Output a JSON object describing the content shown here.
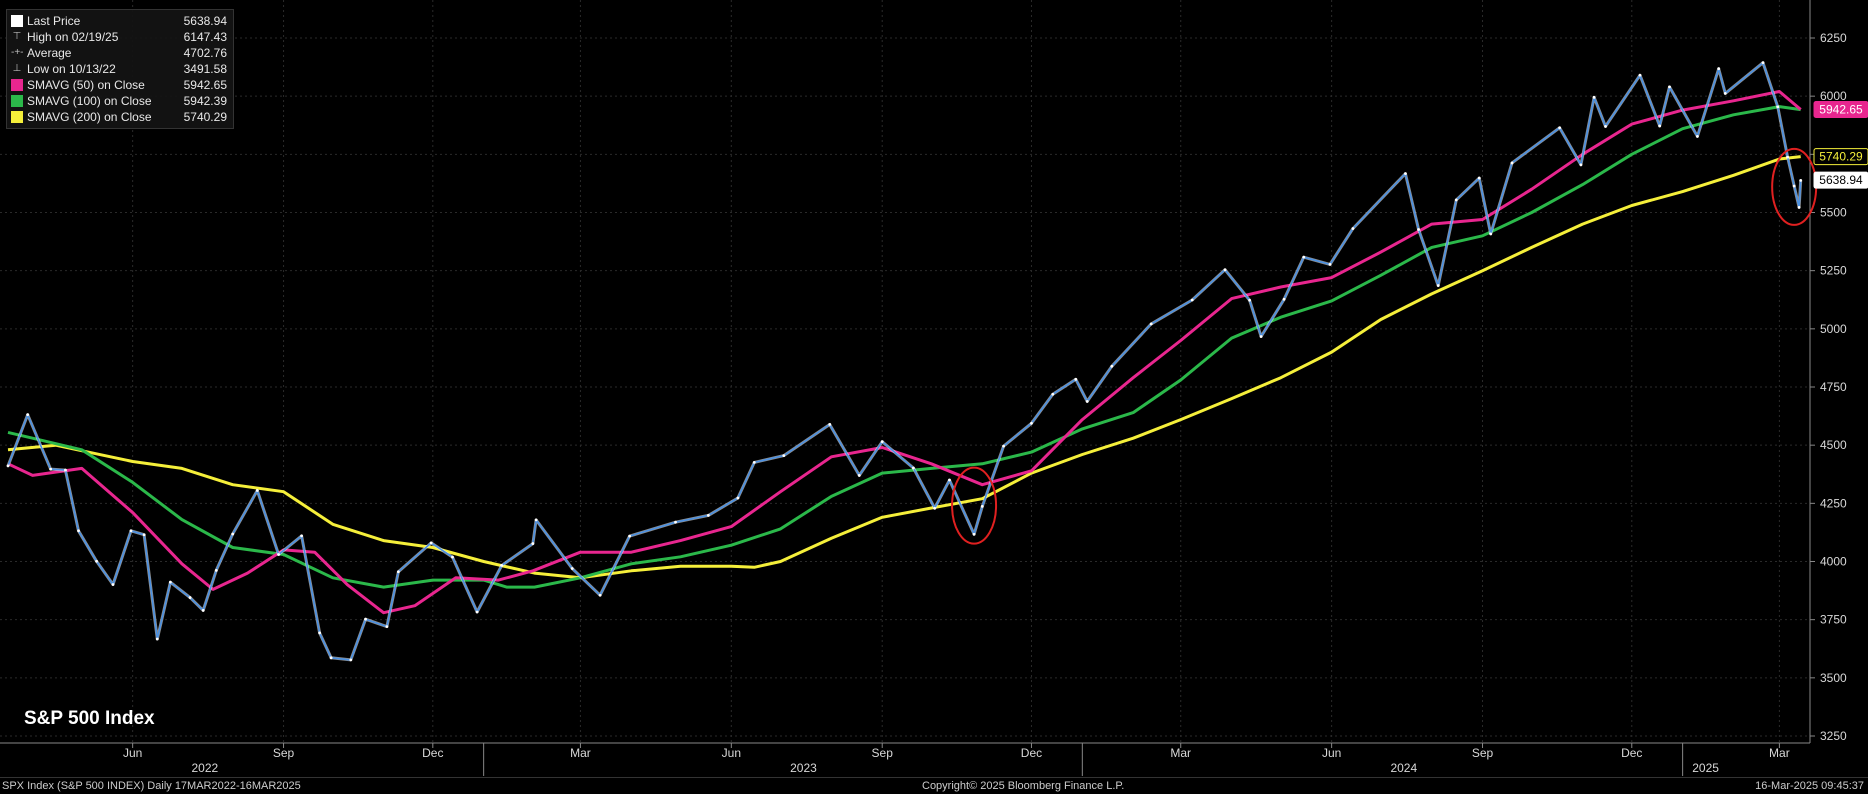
{
  "legend": {
    "items": [
      {
        "label": "Last Price",
        "value": "5638.94",
        "kind": "swatch",
        "color": "#ffffff"
      },
      {
        "label": "High on 02/19/25",
        "value": "6147.43",
        "kind": "marker",
        "marker": "⊤"
      },
      {
        "label": "Average",
        "value": "4702.76",
        "kind": "marker",
        "marker": "-+-"
      },
      {
        "label": "Low on 10/13/22",
        "value": "3491.58",
        "kind": "marker",
        "marker": "⊥"
      },
      {
        "label": "SMAVG (50)  on Close",
        "value": "5942.65",
        "kind": "swatch",
        "color": "#e8268f"
      },
      {
        "label": "SMAVG (100)  on Close",
        "value": "5942.39",
        "kind": "swatch",
        "color": "#2bb84a"
      },
      {
        "label": "SMAVG (200)  on Close",
        "value": "5740.29",
        "kind": "swatch",
        "color": "#f5ef3a"
      }
    ]
  },
  "title": "S&P 500 Index",
  "footer": {
    "left": "SPX Index (S&P 500 INDEX)  Daily 17MAR2022-16MAR2025",
    "center": "Copyright© 2025 Bloomberg Finance L.P.",
    "right": "16-Mar-2025 09:45:37"
  },
  "chart_data": {
    "type": "line",
    "title": "S&P 500 Index",
    "xlim": [
      "2022-03-17",
      "2025-03-16"
    ],
    "ylim": [
      3200,
      6350
    ],
    "y_ticks": [
      3250,
      3500,
      3750,
      4000,
      4250,
      4500,
      4750,
      5000,
      5250,
      5500,
      5750,
      6000,
      6250
    ],
    "x_ticks": [
      {
        "date": "2022-06-01",
        "label": "Jun"
      },
      {
        "date": "2022-09-01",
        "label": "Sep"
      },
      {
        "date": "2022-12-01",
        "label": "Dec"
      },
      {
        "date": "2023-03-01",
        "label": "Mar"
      },
      {
        "date": "2023-06-01",
        "label": "Jun"
      },
      {
        "date": "2023-09-01",
        "label": "Sep"
      },
      {
        "date": "2023-12-01",
        "label": "Dec"
      },
      {
        "date": "2024-03-01",
        "label": "Mar"
      },
      {
        "date": "2024-06-01",
        "label": "Jun"
      },
      {
        "date": "2024-09-01",
        "label": "Sep"
      },
      {
        "date": "2024-12-01",
        "label": "Dec"
      },
      {
        "date": "2025-03-01",
        "label": "Mar"
      }
    ],
    "year_labels": [
      {
        "date": "2022-07-15",
        "label": "2022"
      },
      {
        "date": "2023-07-15",
        "label": "2023"
      },
      {
        "date": "2024-07-15",
        "label": "2024"
      },
      {
        "date": "2025-01-15",
        "label": "2025"
      }
    ],
    "year_dividers": [
      "2023-01-01",
      "2024-01-01",
      "2025-01-01"
    ],
    "grid": true,
    "series": [
      {
        "name": "Last Price",
        "color": "#4a90e2",
        "points": [
          [
            "2022-03-17",
            4411
          ],
          [
            "2022-03-29",
            4631
          ],
          [
            "2022-04-12",
            4397
          ],
          [
            "2022-04-21",
            4393
          ],
          [
            "2022-04-29",
            4132
          ],
          [
            "2022-05-10",
            4001
          ],
          [
            "2022-05-20",
            3901
          ],
          [
            "2022-05-31",
            4132
          ],
          [
            "2022-06-08",
            4115
          ],
          [
            "2022-06-16",
            3667
          ],
          [
            "2022-06-24",
            3911
          ],
          [
            "2022-07-06",
            3845
          ],
          [
            "2022-07-14",
            3790
          ],
          [
            "2022-07-22",
            3962
          ],
          [
            "2022-08-01",
            4118
          ],
          [
            "2022-08-16",
            4305
          ],
          [
            "2022-08-29",
            4030
          ],
          [
            "2022-09-12",
            4110
          ],
          [
            "2022-09-23",
            3693
          ],
          [
            "2022-09-30",
            3586
          ],
          [
            "2022-10-12",
            3577
          ],
          [
            "2022-10-21",
            3752
          ],
          [
            "2022-11-03",
            3720
          ],
          [
            "2022-11-10",
            3956
          ],
          [
            "2022-11-30",
            4080
          ],
          [
            "2022-12-13",
            4019
          ],
          [
            "2022-12-28",
            3783
          ],
          [
            "2023-01-12",
            3983
          ],
          [
            "2023-01-31",
            4077
          ],
          [
            "2023-02-02",
            4179
          ],
          [
            "2023-02-24",
            3970
          ],
          [
            "2023-03-13",
            3855
          ],
          [
            "2023-03-31",
            4109
          ],
          [
            "2023-04-28",
            4169
          ],
          [
            "2023-05-18",
            4198
          ],
          [
            "2023-06-05",
            4273
          ],
          [
            "2023-06-15",
            4426
          ],
          [
            "2023-07-03",
            4455
          ],
          [
            "2023-07-31",
            4589
          ],
          [
            "2023-08-18",
            4370
          ],
          [
            "2023-09-01",
            4515
          ],
          [
            "2023-09-20",
            4402
          ],
          [
            "2023-10-03",
            4229
          ],
          [
            "2023-10-12",
            4350
          ],
          [
            "2023-10-27",
            4117
          ],
          [
            "2023-11-01",
            4237
          ],
          [
            "2023-11-14",
            4496
          ],
          [
            "2023-12-01",
            4594
          ],
          [
            "2023-12-14",
            4719
          ],
          [
            "2023-12-28",
            4783
          ],
          [
            "2024-01-04",
            4688
          ],
          [
            "2024-01-19",
            4839
          ],
          [
            "2024-02-12",
            5021
          ],
          [
            "2024-03-08",
            5124
          ],
          [
            "2024-03-28",
            5254
          ],
          [
            "2024-04-12",
            5123
          ],
          [
            "2024-04-19",
            4967
          ],
          [
            "2024-05-03",
            5127
          ],
          [
            "2024-05-15",
            5308
          ],
          [
            "2024-05-31",
            5277
          ],
          [
            "2024-06-14",
            5431
          ],
          [
            "2024-07-16",
            5667
          ],
          [
            "2024-07-24",
            5427
          ],
          [
            "2024-08-05",
            5186
          ],
          [
            "2024-08-16",
            5554
          ],
          [
            "2024-08-30",
            5648
          ],
          [
            "2024-09-06",
            5408
          ],
          [
            "2024-09-19",
            5713
          ],
          [
            "2024-10-18",
            5864
          ],
          [
            "2024-10-31",
            5705
          ],
          [
            "2024-11-08",
            5995
          ],
          [
            "2024-11-15",
            5870
          ],
          [
            "2024-12-06",
            6090
          ],
          [
            "2024-12-18",
            5872
          ],
          [
            "2024-12-24",
            6040
          ],
          [
            "2025-01-10",
            5827
          ],
          [
            "2025-01-23",
            6118
          ],
          [
            "2025-01-27",
            6012
          ],
          [
            "2025-02-19",
            6144
          ],
          [
            "2025-02-28",
            5954
          ],
          [
            "2025-03-06",
            5738
          ],
          [
            "2025-03-10",
            5614
          ],
          [
            "2025-03-13",
            5522
          ],
          [
            "2025-03-14",
            5638
          ]
        ]
      },
      {
        "name": "SMAVG (50)  on Close",
        "color": "#e8268f",
        "points": [
          [
            "2022-03-17",
            4420
          ],
          [
            "2022-04-01",
            4370
          ],
          [
            "2022-05-01",
            4400
          ],
          [
            "2022-06-01",
            4210
          ],
          [
            "2022-07-01",
            3990
          ],
          [
            "2022-07-20",
            3880
          ],
          [
            "2022-08-10",
            3950
          ],
          [
            "2022-09-01",
            4050
          ],
          [
            "2022-09-20",
            4040
          ],
          [
            "2022-10-10",
            3900
          ],
          [
            "2022-11-01",
            3780
          ],
          [
            "2022-11-20",
            3810
          ],
          [
            "2022-12-15",
            3930
          ],
          [
            "2023-01-10",
            3920
          ],
          [
            "2023-01-31",
            3960
          ],
          [
            "2023-03-01",
            4040
          ],
          [
            "2023-04-01",
            4040
          ],
          [
            "2023-05-01",
            4090
          ],
          [
            "2023-06-01",
            4150
          ],
          [
            "2023-07-01",
            4300
          ],
          [
            "2023-08-01",
            4450
          ],
          [
            "2023-09-01",
            4490
          ],
          [
            "2023-10-01",
            4420
          ],
          [
            "2023-11-01",
            4330
          ],
          [
            "2023-12-01",
            4390
          ],
          [
            "2024-01-01",
            4610
          ],
          [
            "2024-02-01",
            4790
          ],
          [
            "2024-03-01",
            4950
          ],
          [
            "2024-04-01",
            5130
          ],
          [
            "2024-05-01",
            5180
          ],
          [
            "2024-06-01",
            5220
          ],
          [
            "2024-07-01",
            5330
          ],
          [
            "2024-08-01",
            5450
          ],
          [
            "2024-09-01",
            5470
          ],
          [
            "2024-10-01",
            5600
          ],
          [
            "2024-11-01",
            5750
          ],
          [
            "2024-12-01",
            5880
          ],
          [
            "2025-01-01",
            5940
          ],
          [
            "2025-02-01",
            5980
          ],
          [
            "2025-03-01",
            6020
          ],
          [
            "2025-03-14",
            5942.65
          ]
        ]
      },
      {
        "name": "SMAVG (100)  on Close",
        "color": "#2bb84a",
        "points": [
          [
            "2022-03-17",
            4555
          ],
          [
            "2022-04-01",
            4530
          ],
          [
            "2022-05-01",
            4480
          ],
          [
            "2022-06-01",
            4340
          ],
          [
            "2022-07-01",
            4180
          ],
          [
            "2022-08-01",
            4060
          ],
          [
            "2022-09-01",
            4030
          ],
          [
            "2022-10-01",
            3930
          ],
          [
            "2022-11-01",
            3890
          ],
          [
            "2022-12-01",
            3920
          ],
          [
            "2023-01-01",
            3920
          ],
          [
            "2023-01-15",
            3890
          ],
          [
            "2023-02-01",
            3890
          ],
          [
            "2023-03-01",
            3930
          ],
          [
            "2023-04-01",
            3990
          ],
          [
            "2023-05-01",
            4020
          ],
          [
            "2023-06-01",
            4070
          ],
          [
            "2023-07-01",
            4140
          ],
          [
            "2023-08-01",
            4280
          ],
          [
            "2023-09-01",
            4380
          ],
          [
            "2023-10-01",
            4400
          ],
          [
            "2023-11-01",
            4420
          ],
          [
            "2023-12-01",
            4470
          ],
          [
            "2024-01-01",
            4570
          ],
          [
            "2024-02-01",
            4640
          ],
          [
            "2024-03-01",
            4780
          ],
          [
            "2024-04-01",
            4960
          ],
          [
            "2024-05-01",
            5050
          ],
          [
            "2024-06-01",
            5120
          ],
          [
            "2024-07-01",
            5230
          ],
          [
            "2024-08-01",
            5350
          ],
          [
            "2024-09-01",
            5400
          ],
          [
            "2024-10-01",
            5500
          ],
          [
            "2024-11-01",
            5620
          ],
          [
            "2024-12-01",
            5750
          ],
          [
            "2025-01-01",
            5860
          ],
          [
            "2025-02-01",
            5920
          ],
          [
            "2025-03-01",
            5955
          ],
          [
            "2025-03-14",
            5942.39
          ]
        ]
      },
      {
        "name": "SMAVG (200)  on Close",
        "color": "#f5ef3a",
        "points": [
          [
            "2022-03-17",
            4480
          ],
          [
            "2022-04-15",
            4500
          ],
          [
            "2022-06-01",
            4430
          ],
          [
            "2022-07-01",
            4400
          ],
          [
            "2022-08-01",
            4330
          ],
          [
            "2022-09-01",
            4300
          ],
          [
            "2022-10-01",
            4160
          ],
          [
            "2022-11-01",
            4090
          ],
          [
            "2022-12-01",
            4060
          ],
          [
            "2023-01-01",
            4000
          ],
          [
            "2023-02-01",
            3950
          ],
          [
            "2023-03-01",
            3930
          ],
          [
            "2023-04-01",
            3960
          ],
          [
            "2023-05-01",
            3980
          ],
          [
            "2023-06-01",
            3980
          ],
          [
            "2023-06-15",
            3975
          ],
          [
            "2023-07-01",
            4000
          ],
          [
            "2023-08-01",
            4100
          ],
          [
            "2023-09-01",
            4190
          ],
          [
            "2023-10-01",
            4230
          ],
          [
            "2023-11-01",
            4270
          ],
          [
            "2023-12-01",
            4380
          ],
          [
            "2024-01-01",
            4460
          ],
          [
            "2024-02-01",
            4530
          ],
          [
            "2024-03-01",
            4610
          ],
          [
            "2024-04-01",
            4700
          ],
          [
            "2024-05-01",
            4790
          ],
          [
            "2024-06-01",
            4900
          ],
          [
            "2024-07-01",
            5040
          ],
          [
            "2024-08-01",
            5150
          ],
          [
            "2024-09-01",
            5250
          ],
          [
            "2024-10-01",
            5350
          ],
          [
            "2024-11-01",
            5450
          ],
          [
            "2024-12-01",
            5530
          ],
          [
            "2025-01-01",
            5590
          ],
          [
            "2025-02-01",
            5660
          ],
          [
            "2025-03-01",
            5730
          ],
          [
            "2025-03-14",
            5740.29
          ]
        ]
      }
    ],
    "value_labels": [
      {
        "value": 5942.65,
        "text": "5942.65",
        "color": "#e8268f",
        "text_color": "#ffffff"
      },
      {
        "value": 5740.29,
        "text": "5740.29",
        "color": "#f5ef3a",
        "text_color": "#000000"
      },
      {
        "value": 5638.94,
        "text": "5638.94",
        "color": "#ffffff",
        "text_color": "#000000"
      }
    ],
    "annotations": [
      {
        "type": "circle",
        "color": "#e02020",
        "center": [
          "2023-10-27",
          4240
        ],
        "around": "2023 October low"
      },
      {
        "type": "circle",
        "color": "#e02020",
        "center": [
          "2025-03-10",
          5610
        ],
        "around": "March 2025 drop"
      }
    ]
  }
}
